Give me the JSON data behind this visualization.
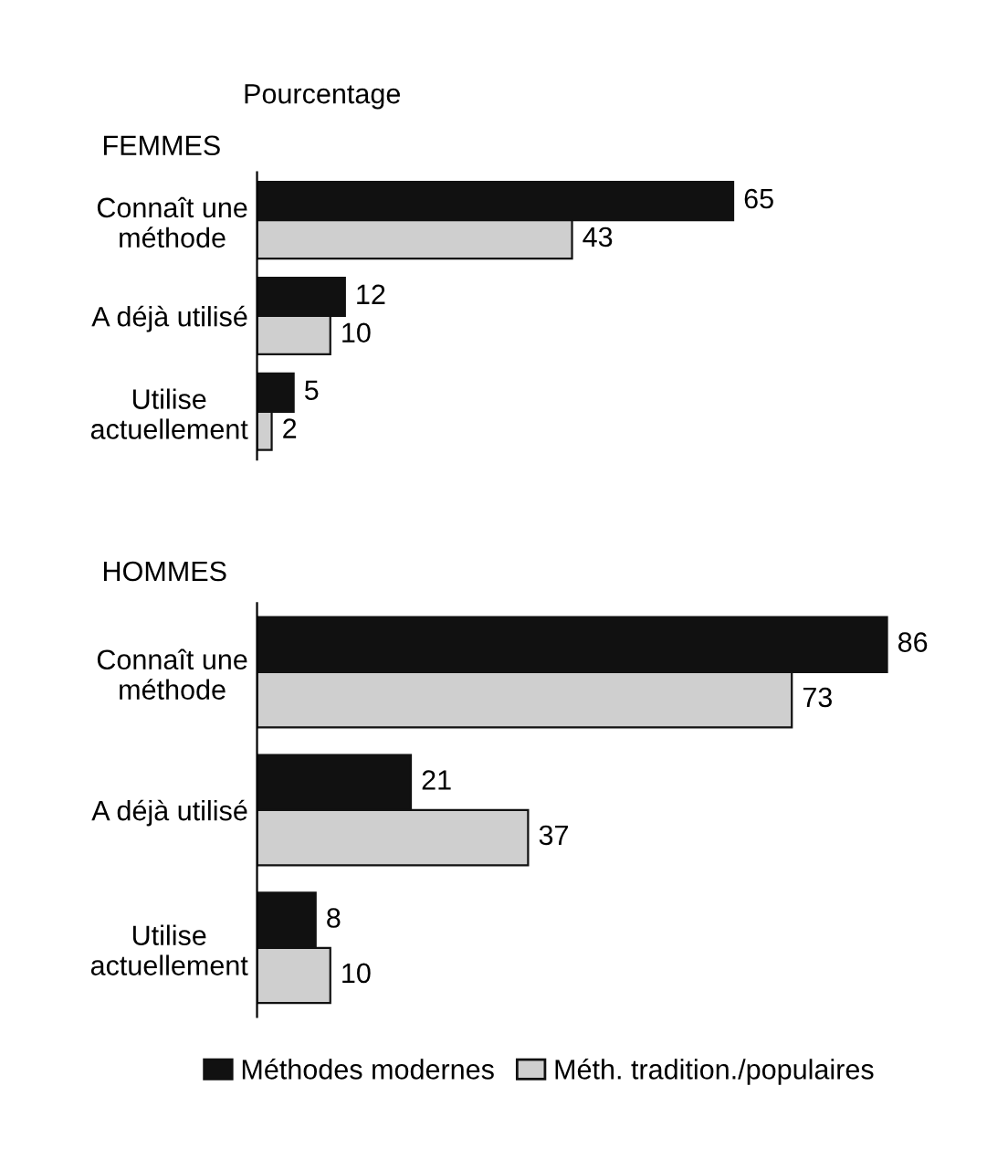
{
  "chart_data": [
    {
      "type": "bar",
      "orientation": "horizontal",
      "xlabel": "Pourcentage",
      "title": "FEMMES",
      "categories": [
        "Connaît une\nméthode",
        "A déjà utilisé",
        "Utilise\nactuellement"
      ],
      "series": [
        {
          "color": "#111111",
          "values": [
            65,
            12,
            5
          ]
        },
        {
          "color": "#cfcfcf",
          "values": [
            43,
            10,
            2
          ]
        }
      ],
      "data_labels": true,
      "tick_labels": "y",
      "legend": false
    },
    {
      "type": "bar",
      "orientation": "horizontal",
      "title": "HOMMES",
      "categories": [
        "Connaît une\nméthode",
        "A déjà utilisé",
        "Utilise\nactuellement"
      ],
      "series": [
        {
          "name": "Méthodes modernes",
          "color": "#111111",
          "values": [
            86,
            21,
            8
          ]
        },
        {
          "name": "Méth. tradition./populaires",
          "color": "#cfcfcf",
          "values": [
            73,
            37,
            10
          ]
        }
      ],
      "data_labels": true,
      "tick_labels": "y",
      "legend": "bottom"
    }
  ]
}
